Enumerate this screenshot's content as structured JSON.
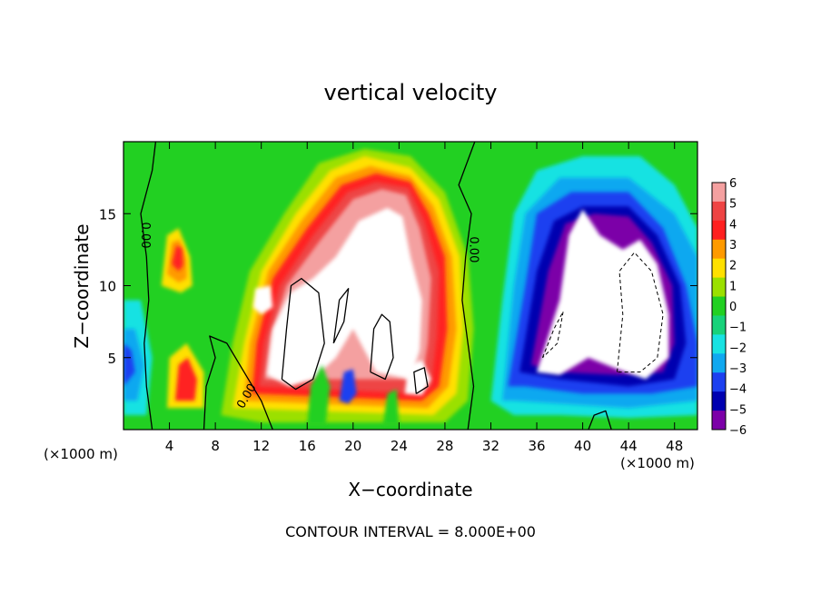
{
  "chart_data": {
    "type": "heatmap",
    "title": "vertical velocity",
    "xlabel": "X−coordinate",
    "ylabel": "Z−coordinate",
    "x_unit_label": "(×1000 m)",
    "xlim": [
      0,
      50
    ],
    "ylim": [
      0,
      20
    ],
    "x_ticks": [
      4,
      8,
      12,
      16,
      20,
      24,
      28,
      32,
      36,
      40,
      44,
      48
    ],
    "y_ticks": [
      5,
      10,
      15
    ],
    "colorbar": {
      "ticks": [
        6,
        5,
        4,
        3,
        2,
        1,
        0,
        -1,
        -2,
        -3,
        -4,
        -5,
        -6
      ],
      "tick_labels": [
        "6",
        "5",
        "4",
        "3",
        "2",
        "1",
        "0",
        "−1",
        "−2",
        "−3",
        "−4",
        "−5",
        "−6"
      ],
      "colors": [
        "#f4a0a0",
        "#ee4444",
        "#ff2020",
        "#ff9a00",
        "#ffe000",
        "#9be000",
        "#22d022",
        "#18d27a",
        "#18e2e2",
        "#10a8f0",
        "#1c40f0",
        "#0000b0",
        "#7c00a8"
      ]
    },
    "contour_interval": "CONTOUR INTERVAL = 8.000E+00",
    "contour_labels": [
      "0.00",
      "0.00",
      "0.00"
    ],
    "features": [
      {
        "kind": "updraft",
        "x": 4.5,
        "z": 12.5,
        "value": 4.5
      },
      {
        "kind": "updraft",
        "x": 5.5,
        "z": 3.5,
        "value": 4
      },
      {
        "kind": "updraft",
        "x": 22,
        "z": 10,
        "value": 12
      },
      {
        "kind": "updraft",
        "x": 15,
        "z": 6,
        "value": 12
      },
      {
        "kind": "updraft",
        "x": 21,
        "z": 4,
        "value": 12
      },
      {
        "kind": "updraft",
        "x": 25,
        "z": 4,
        "value": 10
      },
      {
        "kind": "downdraft",
        "x": 40,
        "z": 9,
        "value": -12
      },
      {
        "kind": "downdraft",
        "x": 45,
        "z": 8,
        "value": -12
      },
      {
        "kind": "downdraft",
        "x": 1,
        "z": 4,
        "value": -4
      }
    ],
    "grid": false
  }
}
